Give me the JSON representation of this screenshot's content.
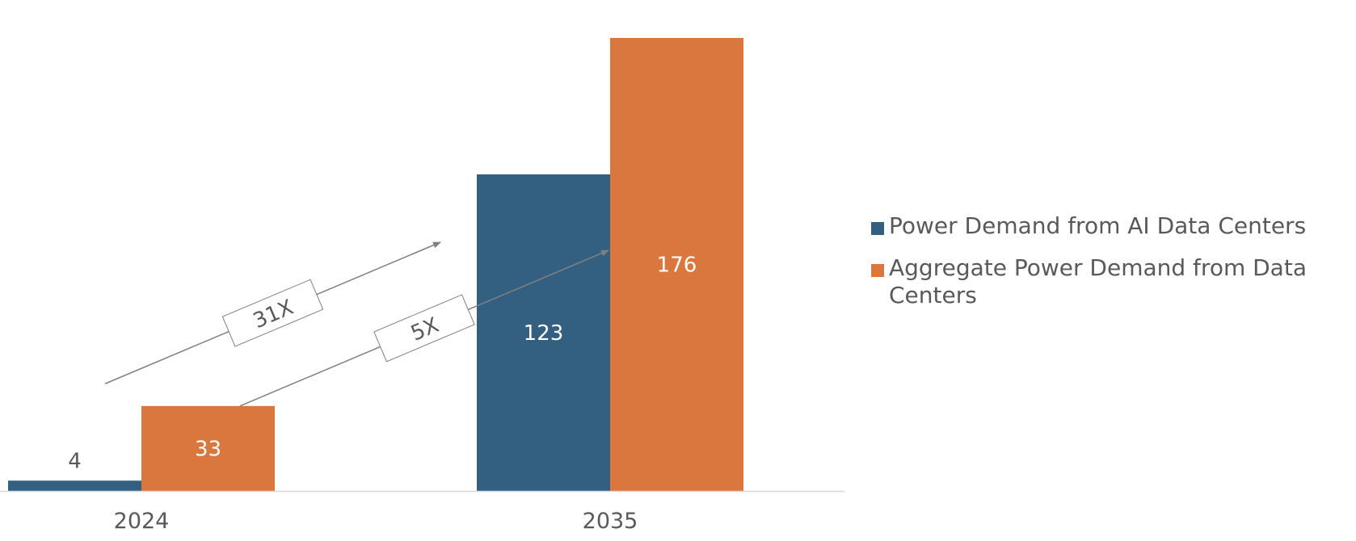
{
  "chart_data": {
    "type": "bar",
    "categories": [
      "2024",
      "2035"
    ],
    "series": [
      {
        "name": "Power Demand from AI Data Centers",
        "values": [
          4,
          123
        ],
        "color": "#335f80"
      },
      {
        "name": "Aggregate Power Demand from Data Centers",
        "values": [
          33,
          176
        ],
        "color": "#d9773f"
      }
    ],
    "ylim": [
      0,
      176
    ],
    "title": "",
    "xlabel": "",
    "ylabel": "",
    "grid": false,
    "legend_position": "right",
    "annotations": [
      {
        "text": "31X",
        "from": "Power Demand from AI Data Centers 2024",
        "to": "Power Demand from AI Data Centers 2035"
      },
      {
        "text": "5X",
        "from": "Aggregate Power Demand from Data Centers 2024",
        "to": "Aggregate Power Demand from Data Centers 2035"
      }
    ]
  },
  "colors": {
    "ai_series": "#335f80",
    "aggregate_series": "#d9773f",
    "text_gray": "#595959",
    "axis_line": "#d9d9d9",
    "arrow_gray": "#808080"
  }
}
